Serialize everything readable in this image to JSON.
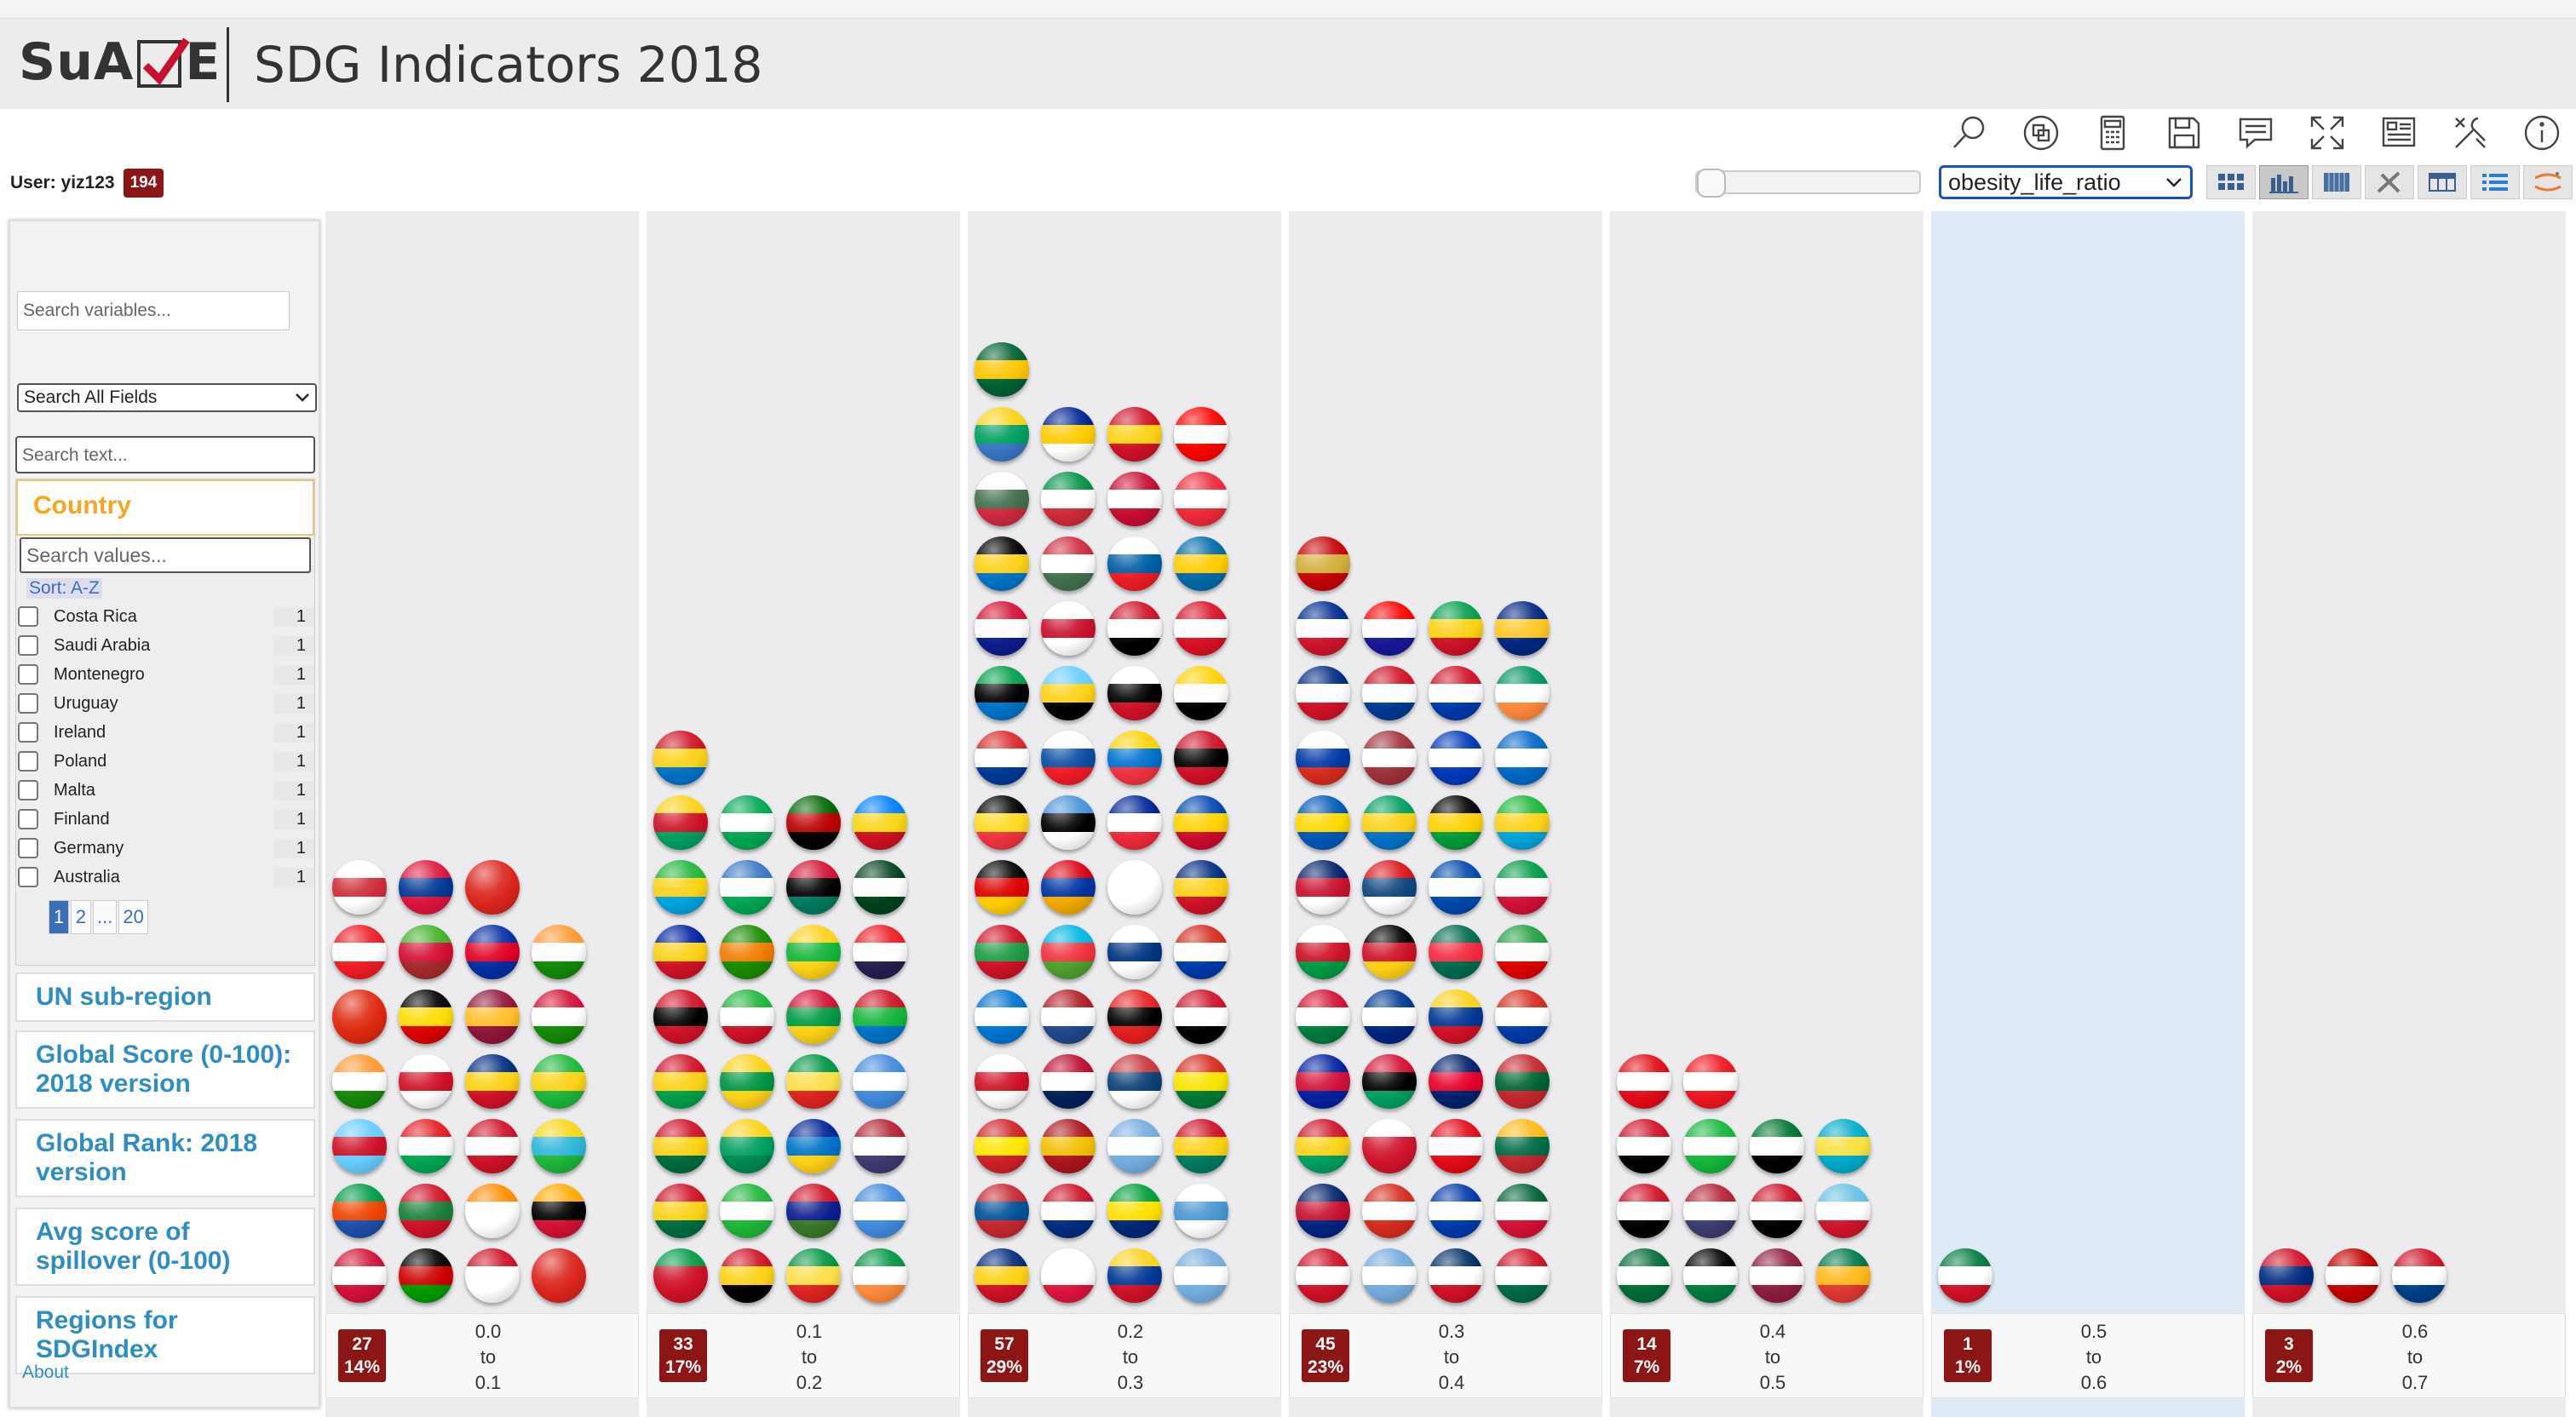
{
  "app": {
    "logo_left": "SuA",
    "logo_right": "E",
    "title": "SDG Indicators 2018"
  },
  "toolbar": {
    "icons": [
      "search-icon",
      "copy-icon",
      "calculator-icon",
      "save-icon",
      "comment-icon",
      "fullscreen-icon",
      "dashboard-icon",
      "tools-icon",
      "info-icon"
    ],
    "view_icons": [
      "grid-view-icon",
      "histogram-view-icon",
      "table-view-icon",
      "scatter-view-icon",
      "crosstab-view-icon",
      "list-view-icon",
      "jupyter-icon"
    ]
  },
  "user": {
    "label": "User: yiz123",
    "count": "194"
  },
  "variable_select": {
    "value": "obesity_life_ratio"
  },
  "slider": {
    "value": 0
  },
  "sidebar": {
    "search_placeholder": "Search variables...",
    "fields_select": "Search All Fields",
    "text_placeholder": "Search text...",
    "country_facet": {
      "title": "Country",
      "search_placeholder": "Search values...",
      "sort_label": "Sort: A-Z",
      "items": [
        {
          "name": "Costa Rica",
          "count": "1"
        },
        {
          "name": "Saudi Arabia",
          "count": "1"
        },
        {
          "name": "Montenegro",
          "count": "1"
        },
        {
          "name": "Uruguay",
          "count": "1"
        },
        {
          "name": "Ireland",
          "count": "1"
        },
        {
          "name": "Poland",
          "count": "1"
        },
        {
          "name": "Malta",
          "count": "1"
        },
        {
          "name": "Finland",
          "count": "1"
        },
        {
          "name": "Germany",
          "count": "1"
        },
        {
          "name": "Australia",
          "count": "1"
        }
      ],
      "pages": [
        "1",
        "2",
        "...",
        "20"
      ]
    },
    "facets": [
      "UN sub-region",
      "Global Score (0-100): 2018 version",
      "Global Rank: 2018 version",
      "Avg score of spillover (0-100)",
      "Regions for SDGIndex"
    ],
    "about": "About"
  },
  "histogram": {
    "bins": [
      {
        "count": "27",
        "pct": "14%",
        "from": "0.0",
        "to_word": "to",
        "to": "0.1",
        "flags": [
          [
            "#d21034",
            "#fff",
            "#d21034"
          ],
          [
            "#000",
            "#c00",
            "#090"
          ],
          [
            "#ce1126",
            "#fff",
            "#fff"
          ],
          [
            "#da251d",
            "#da251d",
            "#da251d"
          ],
          [
            "#009a44",
            "#e40",
            "#1d4ea8"
          ],
          [
            "#ce1126",
            "#1a7f3a",
            "#ce1126"
          ],
          [
            "#ff8c00",
            "#fff",
            "#fff"
          ],
          [
            "#fa0",
            "#000",
            "#d21034"
          ],
          [
            "#6cf",
            "#ce1126",
            "#6cf"
          ],
          [
            "#e31b23",
            "#fff",
            "#00a651"
          ],
          [
            "#ce1126",
            "#fff",
            "#ce1126"
          ],
          [
            "#f9d616",
            "#2eb6d8",
            "#1eb53a"
          ],
          [
            "#ff9933",
            "#fff",
            "#138808"
          ],
          [
            "#fff",
            "#ce1126",
            "#fff"
          ],
          [
            "#002b7f",
            "#fcd116",
            "#ce1126"
          ],
          [
            "#1eb53a",
            "#fcd116",
            "#1eb53a"
          ],
          [
            "#de2910",
            "#de2910",
            "#de2910"
          ],
          [
            "#000",
            "#fcdc04",
            "#d90000"
          ],
          [
            "#8d153a",
            "#ffbe29",
            "#8d153a"
          ],
          [
            "#d21034",
            "#fff",
            "#138808"
          ],
          [
            "#ee1c25",
            "#fff",
            "#ee1c25"
          ],
          [
            "#43b02a",
            "#d21034",
            "#a52a2a"
          ],
          [
            "#032ea1",
            "#e00025",
            "#032ea1"
          ],
          [
            "#ff9933",
            "#fff",
            "#138808"
          ],
          [
            "#fff",
            "#cd2e3a",
            "#fff"
          ],
          [
            "#dc143c",
            "#003893",
            "#dc143c"
          ],
          [
            "#da251d",
            "#da251d",
            "#da251d"
          ]
        ]
      },
      {
        "count": "33",
        "pct": "17%",
        "from": "0.1",
        "to_word": "to",
        "to": "0.2",
        "flags": [
          [
            "#009a44",
            "#ce1126",
            "#ce1126"
          ],
          [
            "#ce1126",
            "#fcd116",
            "#000"
          ],
          [
            "#009543",
            "#fbde4a",
            "#dc241f"
          ],
          [
            "#009543",
            "#fff",
            "#ff883e"
          ],
          [
            "#ce1126",
            "#fcd116",
            "#006b3f"
          ],
          [
            "#1eb53a",
            "#fff",
            "#1eb53a"
          ],
          [
            "#ce1126",
            "#0c1c8c",
            "#3a7728"
          ],
          [
            "#4189dd",
            "#fff",
            "#4189dd"
          ],
          [
            "#ce1126",
            "#fcd116",
            "#006b3f"
          ],
          [
            "#fcd116",
            "#009e60",
            "#008751"
          ],
          [
            "#002395",
            "#0072c6",
            "#fcd116"
          ],
          [
            "#b22234",
            "#fff",
            "#3c3b6e"
          ],
          [
            "#ce1126",
            "#fcd116",
            "#009e49"
          ],
          [
            "#fcd116",
            "#009543",
            "#fcd116"
          ],
          [
            "#009543",
            "#fbde4a",
            "#dc241f"
          ],
          [
            "#4189dd",
            "#fff",
            "#4189dd"
          ],
          [
            "#ce1126",
            "#000",
            "#ce1126"
          ],
          [
            "#1eb53a",
            "#fff",
            "#ce1126"
          ],
          [
            "#d21034",
            "#009a44",
            "#fcd116"
          ],
          [
            "#ce1126",
            "#14b53a",
            "#0072c6"
          ],
          [
            "#00209f",
            "#fcd116",
            "#ce1126"
          ],
          [
            "#198a00",
            "#ef7d00",
            "#198a00"
          ],
          [
            "#fcd116",
            "#14b53a",
            "#fcd116"
          ],
          [
            "#ed1c24",
            "#fff",
            "#241d4f"
          ],
          [
            "#1eb53a",
            "#fcd116",
            "#00a3dd"
          ],
          [
            "#3a75c4",
            "#fff",
            "#00a651"
          ],
          [
            "#d21034",
            "#000",
            "#007a5e"
          ],
          [
            "#01411c",
            "#fff",
            "#01411c"
          ],
          [
            "#fcd116",
            "#ce1126",
            "#009e60"
          ],
          [
            "#00a651",
            "#fff",
            "#00a651"
          ],
          [
            "#006600",
            "#bb0000",
            "#000"
          ],
          [
            "#007fff",
            "#f7d618",
            "#ce1021"
          ],
          [
            "#ce1126",
            "#fcd116",
            "#0072c6"
          ]
        ]
      },
      {
        "count": "57",
        "pct": "29%",
        "from": "0.2",
        "to_word": "to",
        "to": "0.3",
        "flags": [
          [
            "#002b7f",
            "#fcd116",
            "#ce1126"
          ],
          [
            "#fff",
            "#fff",
            "#dc143c"
          ],
          [
            "#fcd116",
            "#003893",
            "#ce1126"
          ],
          [
            "#74acdf",
            "#fff",
            "#74acdf"
          ],
          [
            "#c4272f",
            "#015197",
            "#c4272f"
          ],
          [
            "#ce1126",
            "#fff",
            "#002b7f"
          ],
          [
            "#009c3b",
            "#ffdf00",
            "#002776"
          ],
          [
            "#fff",
            "#4997d0",
            "#fff"
          ],
          [
            "#ce2028",
            "#ffe600",
            "#ce2028"
          ],
          [
            "#aa151b",
            "#f1bf00",
            "#aa151b"
          ],
          [
            "#74acdf",
            "#fff",
            "#74acdf"
          ],
          [
            "#ce1126",
            "#fcd116",
            "#007a5e"
          ],
          [
            "#fff",
            "#ce1126",
            "#fff"
          ],
          [
            "#ba0c2f",
            "#fff",
            "#00205b"
          ],
          [
            "#c6363c",
            "#0c4076",
            "#fff"
          ],
          [
            "#d52b1e",
            "#f9e300",
            "#007934"
          ],
          [
            "#0073cf",
            "#fff",
            "#0073cf"
          ],
          [
            "#ae1c28",
            "#fff",
            "#21468b"
          ],
          [
            "#e41e20",
            "#000",
            "#e41e20"
          ],
          [
            "#ce1126",
            "#fff",
            "#000"
          ],
          [
            "#ce1126",
            "#1e9a45",
            "#ce1126"
          ],
          [
            "#00b5e2",
            "#ef3340",
            "#509e2f"
          ],
          [
            "#fff",
            "#003580",
            "#fff"
          ],
          [
            "#d52b1e",
            "#fff",
            "#0038a8"
          ],
          [
            "#000",
            "#dd0000",
            "#ffce00"
          ],
          [
            "#d90012",
            "#0033a0",
            "#f2a800"
          ],
          [
            "#fff",
            "#fff",
            "#fff"
          ],
          [
            "#002b7f",
            "#fcd116",
            "#ce1126"
          ],
          [
            "#000",
            "#fdda24",
            "#ef3340"
          ],
          [
            "#4891d9",
            "#000",
            "#fff"
          ],
          [
            "#002395",
            "#fff",
            "#ed2939"
          ],
          [
            "#0046ae",
            "#ffd200",
            "#cc092f"
          ],
          [
            "#d72828",
            "#fff",
            "#003897"
          ],
          [
            "#fff",
            "#0b4ea2",
            "#ee1c25"
          ],
          [
            "#ffd100",
            "#0072ce",
            "#ef3340"
          ],
          [
            "#ce1126",
            "#000",
            "#ce1126"
          ],
          [
            "#009e49",
            "#000",
            "#0072c6"
          ],
          [
            "#66ccff",
            "#fcd116",
            "#000"
          ],
          [
            "#fff",
            "#000",
            "#ce1126"
          ],
          [
            "#ffd200",
            "#fff",
            "#000"
          ],
          [
            "#d21034",
            "#fff",
            "#0c1c8c"
          ],
          [
            "#fff",
            "#c8102e",
            "#fff"
          ],
          [
            "#ce1126",
            "#fff",
            "#000"
          ],
          [
            "#d91023",
            "#fff",
            "#d91023"
          ],
          [
            "#000",
            "#fcd116",
            "#0072c6"
          ],
          [
            "#cd2a3e",
            "#fff",
            "#436f4d"
          ],
          [
            "#fff",
            "#005da4",
            "#ed1c24"
          ],
          [
            "#006aa7",
            "#fecc00",
            "#006aa7"
          ],
          [
            "#fff",
            "#436f4d",
            "#cd2a3e"
          ],
          [
            "#009246",
            "#fff",
            "#ce2b37"
          ],
          [
            "#c60c30",
            "#fff",
            "#c60c30"
          ],
          [
            "#ed2939",
            "#fff",
            "#ed2939"
          ],
          [
            "#fcd116",
            "#009e60",
            "#3a75c4"
          ],
          [
            "#002395",
            "#fecb00",
            "#fff"
          ],
          [
            "#ce1126",
            "#fcd116",
            "#ce1126"
          ],
          [
            "#ff0000",
            "#fff",
            "#ff0000"
          ],
          [
            "#006233",
            "#ffc400",
            "#006233"
          ]
        ]
      },
      {
        "count": "45",
        "pct": "23%",
        "from": "0.3",
        "to_word": "to",
        "to": "0.4",
        "flags": [
          [
            "#ce1126",
            "#fff",
            "#ce1126"
          ],
          [
            "#75aadb",
            "#fff",
            "#75aadb"
          ],
          [
            "#002d62",
            "#fff",
            "#ce1126"
          ],
          [
            "#ce1126",
            "#fff",
            "#006847"
          ],
          [
            "#012169",
            "#c8102e",
            "#00247d"
          ],
          [
            "#d52b1e",
            "#fff",
            "#d52b1e"
          ],
          [
            "#0038a8",
            "#fff",
            "#0038a8"
          ],
          [
            "#006233",
            "#fff",
            "#d21034"
          ],
          [
            "#ce1126",
            "#fcd116",
            "#009e60"
          ],
          [
            "#fff",
            "#cf142b",
            "#cf142b"
          ],
          [
            "#e30a17",
            "#fff",
            "#e30a17"
          ],
          [
            "#fdb913",
            "#006a44",
            "#c1272d"
          ],
          [
            "#00209f",
            "#d21034",
            "#00209f"
          ],
          [
            "#d21034",
            "#000",
            "#009e60"
          ],
          [
            "#012169",
            "#e4002b",
            "#012169"
          ],
          [
            "#c1272d",
            "#006233",
            "#c1272d"
          ],
          [
            "#d21034",
            "#fff",
            "#007a3d"
          ],
          [
            "#003893",
            "#fff",
            "#00247d"
          ],
          [
            "#fcd116",
            "#003893",
            "#ce1126"
          ],
          [
            "#d52b1e",
            "#fff",
            "#0039a6"
          ],
          [
            "#fff",
            "#ce1126",
            "#009a44"
          ],
          [
            "#000",
            "#ce1126",
            "#fcd116"
          ],
          [
            "#006a4e",
            "#f42a41",
            "#006a4e"
          ],
          [
            "#239f40",
            "#fff",
            "#da0000"
          ],
          [
            "#012169",
            "#c8102e",
            "#fff"
          ],
          [
            "#d7141a",
            "#11457e",
            "#fff"
          ],
          [
            "#0047ab",
            "#fff",
            "#0047ab"
          ],
          [
            "#009a44",
            "#fff",
            "#d21034"
          ],
          [
            "#0057b7",
            "#ffd700",
            "#0057b7"
          ],
          [
            "#009e60",
            "#fcd116",
            "#0072c6"
          ],
          [
            "#000",
            "#fed100",
            "#009b3a"
          ],
          [
            "#1eb53a",
            "#fcd116",
            "#00a3dd"
          ],
          [
            "#fff",
            "#0039a6",
            "#d52b1e"
          ],
          [
            "#9e3039",
            "#fff",
            "#9e3039"
          ],
          [
            "#0038b8",
            "#fff",
            "#0038b8"
          ],
          [
            "#0067c6",
            "#fff",
            "#0067c6"
          ],
          [
            "#002b7f",
            "#fff",
            "#ce1126"
          ],
          [
            "#ce1126",
            "#fff",
            "#003893"
          ],
          [
            "#ce1126",
            "#fff",
            "#0038a8"
          ],
          [
            "#009460",
            "#fff",
            "#ff883e"
          ],
          [
            "#002a8f",
            "#fff",
            "#cf142b"
          ],
          [
            "#ff0000",
            "#fff",
            "#171796"
          ],
          [
            "#009e49",
            "#fcd116",
            "#ce1126"
          ],
          [
            "#00267f",
            "#ffc726",
            "#00267f"
          ],
          [
            "#c40308",
            "#d3ae3b",
            "#c40308"
          ]
        ]
      },
      {
        "count": "14",
        "pct": "7%",
        "from": "0.4",
        "to_word": "to",
        "to": "0.5",
        "flags": [
          [
            "#006c35",
            "#fff",
            "#006c35"
          ],
          [
            "#000",
            "#fff",
            "#007a3d"
          ],
          [
            "#8d1b3d",
            "#fff",
            "#8d1b3d"
          ],
          [
            "#007749",
            "#ffb81c",
            "#de3831"
          ],
          [
            "#ce1126",
            "#fff",
            "#000"
          ],
          [
            "#b22234",
            "#fff",
            "#3c3b6e"
          ],
          [
            "#ce1126",
            "#fff",
            "#000"
          ],
          [
            "#68bfe5",
            "#fff",
            "#cf142b"
          ],
          [
            "#ce1126",
            "#fff",
            "#000"
          ],
          [
            "#14b53a",
            "#fff",
            "#14b53a"
          ],
          [
            "#00732f",
            "#fff",
            "#000"
          ],
          [
            "#00abc9",
            "#fae042",
            "#00abc9"
          ],
          [
            "#e30a17",
            "#fff",
            "#e30a17"
          ],
          [
            "#ee161f",
            "#fff",
            "#ee161f"
          ]
        ]
      },
      {
        "count": "1",
        "pct": "1%",
        "from": "0.5",
        "to_word": "to",
        "to": "0.6",
        "flags": [
          [
            "#007a3d",
            "#fff",
            "#ce1126"
          ]
        ]
      },
      {
        "count": "3",
        "pct": "2%",
        "from": "0.6",
        "to_word": "to",
        "to": "0.7",
        "flags": [
          [
            "#ce1126",
            "#002b7f",
            "#ce1126"
          ],
          [
            "#c10000",
            "#fff",
            "#c10000"
          ],
          [
            "#ce1126",
            "#fff",
            "#003f87"
          ]
        ]
      }
    ]
  }
}
